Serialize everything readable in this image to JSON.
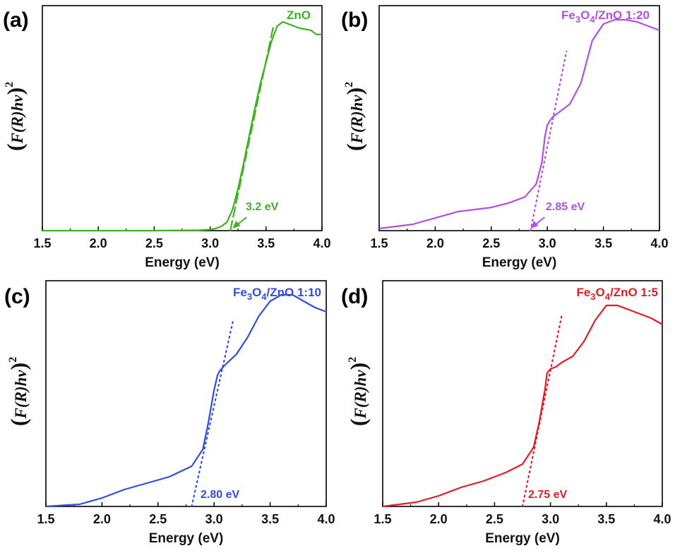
{
  "chart_data": [
    {
      "type": "line",
      "panel": "(a)",
      "xlabel": "Energy (eV)",
      "ylabel": {
        "pre": "(",
        "main": "F(R)hv",
        "post": ")",
        "sup": "2"
      },
      "xlim": [
        1.5,
        4.0
      ],
      "ylim": [
        0,
        1
      ],
      "xticks": [
        "1.5",
        "2.0",
        "2.5",
        "3.0",
        "3.5",
        "4.0"
      ],
      "color": "#3cb31e",
      "legend": {
        "main": "ZnO",
        "sub1": "",
        "mid": "",
        "sub2": "",
        "tail": ""
      },
      "annotation": {
        "text": "3.2 eV",
        "x": 3.2
      },
      "tangent": {
        "x0": 3.18,
        "x1": 3.57,
        "y1": 0.98,
        "dash": "14,6"
      },
      "series": [
        {
          "name": "ZnO",
          "x": [
            1.5,
            2.0,
            2.5,
            2.9,
            3.0,
            3.05,
            3.1,
            3.15,
            3.2,
            3.25,
            3.3,
            3.35,
            3.4,
            3.45,
            3.5,
            3.55,
            3.6,
            3.65,
            3.7,
            3.8,
            3.9,
            3.95,
            4.0
          ],
          "y": [
            0.0,
            0.0,
            0.0,
            0.002,
            0.005,
            0.01,
            0.02,
            0.04,
            0.1,
            0.2,
            0.32,
            0.45,
            0.58,
            0.7,
            0.8,
            0.9,
            0.97,
            0.99,
            0.98,
            0.96,
            0.95,
            0.93,
            0.93
          ]
        }
      ]
    },
    {
      "type": "line",
      "panel": "(b)",
      "xlabel": "Energy (eV)",
      "ylabel": {
        "pre": "(",
        "main": "F(R)hv",
        "post": ")",
        "sup": "2"
      },
      "xlim": [
        1.5,
        4.0
      ],
      "ylim": [
        0,
        1
      ],
      "xticks": [
        "1.5",
        "2.0",
        "2.5",
        "3.0",
        "3.5",
        "4.0"
      ],
      "color": "#b24fe0",
      "legend": {
        "main": "Fe",
        "sub1": "3",
        "mid": "O",
        "sub2": "4",
        "tail": "/ZnO 1:20"
      },
      "annotation": {
        "text": "2.85 eV",
        "x": 2.85
      },
      "tangent": {
        "x0": 2.85,
        "x1": 3.17,
        "y1": 0.85,
        "dash": "2,5"
      },
      "series": [
        {
          "name": "Fe3O4/ZnO 1:20",
          "x": [
            1.5,
            1.8,
            2.0,
            2.2,
            2.35,
            2.5,
            2.65,
            2.8,
            2.9,
            2.95,
            2.98,
            3.0,
            3.02,
            3.05,
            3.1,
            3.2,
            3.3,
            3.4,
            3.5,
            3.6,
            3.7,
            3.8,
            3.9,
            4.0
          ],
          "y": [
            0.01,
            0.03,
            0.06,
            0.09,
            0.1,
            0.11,
            0.13,
            0.16,
            0.22,
            0.32,
            0.45,
            0.5,
            0.52,
            0.54,
            0.56,
            0.6,
            0.7,
            0.9,
            0.98,
            1.0,
            1.0,
            0.99,
            0.97,
            0.95
          ]
        }
      ]
    },
    {
      "type": "line",
      "panel": "(c)",
      "xlabel": "Energy (eV)",
      "ylabel": {
        "pre": "(",
        "main": "F(R)hv",
        "post": ")",
        "sup": "2"
      },
      "xlim": [
        1.5,
        4.0
      ],
      "ylim": [
        0,
        1
      ],
      "xticks": [
        "1.5",
        "2.0",
        "2.5",
        "3.0",
        "3.5",
        "4.0"
      ],
      "color": "#2f4ddf",
      "legend": {
        "main": "Fe",
        "sub1": "3",
        "mid": "O",
        "sub2": "4",
        "tail": "/ZnO 1:10"
      },
      "annotation": {
        "text": "2.80 eV",
        "x": 2.8
      },
      "tangent": {
        "x0": 2.8,
        "x1": 3.17,
        "y1": 0.88,
        "dash": "2,5"
      },
      "series": [
        {
          "name": "Fe3O4/ZnO 1:10",
          "x": [
            1.5,
            1.8,
            2.0,
            2.2,
            2.4,
            2.6,
            2.8,
            2.9,
            2.95,
            3.0,
            3.03,
            3.05,
            3.1,
            3.2,
            3.3,
            3.4,
            3.5,
            3.6,
            3.7,
            3.8,
            3.9,
            4.0
          ],
          "y": [
            0.0,
            0.01,
            0.04,
            0.08,
            0.11,
            0.14,
            0.19,
            0.27,
            0.4,
            0.55,
            0.62,
            0.64,
            0.67,
            0.72,
            0.8,
            0.9,
            0.97,
            1.0,
            1.0,
            0.97,
            0.94,
            0.92
          ]
        }
      ]
    },
    {
      "type": "line",
      "panel": "(d)",
      "xlabel": "Energy (eV)",
      "ylabel": {
        "pre": "(",
        "main": "F(R)hv",
        "post": ")",
        "sup": "2"
      },
      "xlim": [
        1.5,
        4.0
      ],
      "ylim": [
        0,
        1
      ],
      "xticks": [
        "1.5",
        "2.0",
        "2.5",
        "3.0",
        "3.5",
        "4.0"
      ],
      "color": "#e51b24",
      "legend": {
        "main": "Fe",
        "sub1": "3",
        "mid": "O",
        "sub2": "4",
        "tail": "/ZnO 1:5"
      },
      "annotation": {
        "text": "2.75 eV",
        "x": 2.75
      },
      "tangent": {
        "x0": 2.75,
        "x1": 3.1,
        "y1": 0.9,
        "dash": "2,5"
      },
      "series": [
        {
          "name": "Fe3O4/ZnO 1:5",
          "x": [
            1.5,
            1.8,
            2.0,
            2.2,
            2.4,
            2.6,
            2.75,
            2.85,
            2.9,
            2.95,
            2.97,
            3.0,
            3.05,
            3.1,
            3.2,
            3.3,
            3.4,
            3.5,
            3.6,
            3.7,
            3.8,
            3.9,
            4.0
          ],
          "y": [
            0.0,
            0.02,
            0.05,
            0.09,
            0.12,
            0.16,
            0.2,
            0.28,
            0.4,
            0.55,
            0.63,
            0.65,
            0.66,
            0.68,
            0.71,
            0.78,
            0.88,
            0.95,
            0.95,
            0.93,
            0.91,
            0.89,
            0.86
          ]
        }
      ]
    }
  ]
}
